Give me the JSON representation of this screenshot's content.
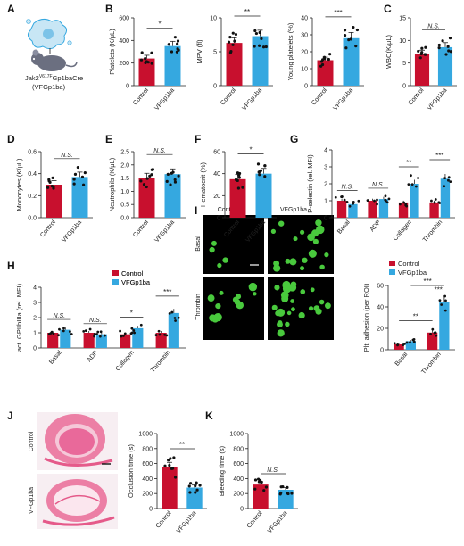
{
  "colors": {
    "control": "#c8102e",
    "vfgp1ba": "#35a8e0",
    "axis": "#222222",
    "micro_bg": "#000000",
    "micro_cell": "#49c93d",
    "he_pink": "#e55a8a"
  },
  "panel_letters": [
    "A",
    "B",
    "C",
    "D",
    "E",
    "F",
    "G",
    "H",
    "I",
    "J",
    "K"
  ],
  "panel_a": {
    "genotype_line1": "Jak2",
    "genotype_sup": "V617F",
    "genotype_line1_rest": "Gp1baCre",
    "genotype_line2": "(VFGp1ba)"
  },
  "panel_i_micro": {
    "col_labels": [
      "Control",
      "VFGp1ba"
    ],
    "row_labels": [
      "Basal",
      "Thrombin"
    ]
  },
  "panel_j_micro": {
    "row_labels": [
      "Control",
      "VFGp1ba"
    ]
  },
  "chart_data": [
    {
      "id": "B1",
      "type": "bar",
      "categories": [
        "Control",
        "VFGp1ba"
      ],
      "values": [
        240,
        350
      ],
      "ylabel": "Platelets (K/μL)",
      "ylim": [
        0,
        600
      ],
      "yticks": [
        0,
        200,
        400,
        600
      ],
      "significance": "*"
    },
    {
      "id": "B2",
      "type": "bar",
      "categories": [
        "Control",
        "VFGp1ba"
      ],
      "values": [
        6.3,
        7.3
      ],
      "ylabel": "MPV (fl)",
      "ylim": [
        0,
        10
      ],
      "yticks": [
        0,
        5,
        10
      ],
      "significance": "**"
    },
    {
      "id": "B3",
      "type": "bar",
      "categories": [
        "Control",
        "VFGp1ba"
      ],
      "values": [
        15,
        28
      ],
      "ylabel": "Young platelets (%)",
      "ylim": [
        0,
        40
      ],
      "yticks": [
        0,
        10,
        20,
        30,
        40
      ],
      "significance": "***"
    },
    {
      "id": "C",
      "type": "bar",
      "categories": [
        "Control",
        "VFGp1ba"
      ],
      "values": [
        7,
        8.5
      ],
      "ylabel": "WBC(K/μL)",
      "ylim": [
        0,
        15
      ],
      "yticks": [
        0,
        5,
        10,
        15
      ],
      "significance": "N.S."
    },
    {
      "id": "D",
      "type": "bar",
      "categories": [
        "Control",
        "VFGp1ba"
      ],
      "values": [
        0.3,
        0.37
      ],
      "ylabel": "Monocytes (K/μL)",
      "ylim": [
        0,
        0.6
      ],
      "yticks": [
        0.0,
        0.2,
        0.4,
        0.6
      ],
      "significance": "N.S."
    },
    {
      "id": "E",
      "type": "bar",
      "categories": [
        "Control",
        "VFGp1ba"
      ],
      "values": [
        1.5,
        1.65
      ],
      "ylabel": "Neutrophils (K/μL)",
      "ylim": [
        0,
        2.5
      ],
      "yticks": [
        0.0,
        0.5,
        1.0,
        1.5,
        2.0,
        2.5
      ],
      "significance": "N.S."
    },
    {
      "id": "F",
      "type": "bar",
      "categories": [
        "Control",
        "VFGp1ba"
      ],
      "values": [
        35,
        40
      ],
      "ylabel": "Hematocrit (%)",
      "ylim": [
        0,
        60
      ],
      "yticks": [
        0,
        20,
        40,
        60
      ],
      "significance": "*"
    },
    {
      "id": "G",
      "type": "bar",
      "categories": [
        "Basal",
        "ADP",
        "Collagen",
        "Thrombin"
      ],
      "series": [
        {
          "name": "Control",
          "values": [
            1.0,
            1.0,
            0.9,
            0.9
          ]
        },
        {
          "name": "VFGp1ba",
          "values": [
            0.8,
            1.1,
            2.0,
            2.3
          ]
        }
      ],
      "ylabel": "P-selectin (rel. MFI)",
      "ylim": [
        0,
        4
      ],
      "yticks": [
        0,
        1,
        2,
        3,
        4
      ],
      "significance": [
        "N.S.",
        "N.S.",
        "**",
        "***"
      ]
    },
    {
      "id": "H",
      "type": "bar",
      "categories": [
        "Basal",
        "ADP",
        "Collagen",
        "Thrombin"
      ],
      "series": [
        {
          "name": "Control",
          "values": [
            1.0,
            1.0,
            0.9,
            1.0
          ]
        },
        {
          "name": "VFGp1ba",
          "values": [
            1.2,
            0.9,
            1.3,
            2.3
          ]
        }
      ],
      "ylabel": "act. GPIIbIIIa (rel. MFI)",
      "ylim": [
        0,
        4
      ],
      "yticks": [
        0,
        1,
        2,
        3,
        4
      ],
      "significance": [
        "N.S.",
        "N.S.",
        "*",
        "***"
      ]
    },
    {
      "id": "I",
      "type": "bar",
      "categories": [
        "Basal",
        "Thrombin"
      ],
      "series": [
        {
          "name": "Control",
          "values": [
            5,
            16
          ]
        },
        {
          "name": "VFGp1ba",
          "values": [
            8,
            45
          ]
        }
      ],
      "ylabel": "Plt. adhesion (per ROI)",
      "ylim": [
        0,
        60
      ],
      "yticks": [
        0,
        20,
        40,
        60
      ],
      "significance": [
        "**",
        "***",
        "***"
      ]
    },
    {
      "id": "J",
      "type": "bar",
      "categories": [
        "Control",
        "VFGp1ba"
      ],
      "values": [
        550,
        280
      ],
      "ylabel": "Occlusion time (s)",
      "ylim": [
        0,
        1000
      ],
      "yticks": [
        0,
        200,
        400,
        600,
        800,
        1000
      ],
      "significance": "**"
    },
    {
      "id": "K",
      "type": "bar",
      "categories": [
        "Control",
        "VFGp1ba"
      ],
      "values": [
        320,
        250
      ],
      "ylabel": "Bleeding time (s)",
      "ylim": [
        0,
        1000
      ],
      "yticks": [
        0,
        200,
        400,
        600,
        800,
        1000
      ],
      "significance": "N.S."
    }
  ]
}
